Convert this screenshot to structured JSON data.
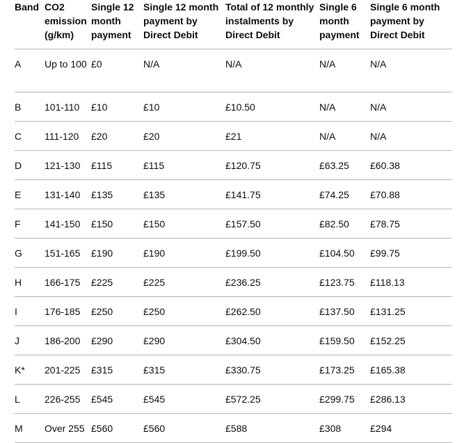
{
  "table": {
    "headers": [
      "Band",
      "CO2 emission (g/km)",
      "Single 12 month payment",
      "Single 12 month payment by Direct Debit",
      "Total of 12 monthly instalments by Direct Debit",
      "Single 6 month payment",
      "Single 6 month payment by Direct Debit"
    ],
    "rows": [
      [
        "A",
        "Up to 100",
        "£0",
        "N/A",
        "N/A",
        "N/A",
        "N/A"
      ],
      [
        "B",
        "101-110",
        "£10",
        "£10",
        "£10.50",
        "N/A",
        "N/A"
      ],
      [
        "C",
        "111-120",
        "£20",
        "£20",
        "£21",
        "N/A",
        "N/A"
      ],
      [
        "D",
        "121-130",
        "£115",
        "£115",
        "£120.75",
        "£63.25",
        "£60.38"
      ],
      [
        "E",
        "131-140",
        "£135",
        "£135",
        "£141.75",
        "£74.25",
        "£70.88"
      ],
      [
        "F",
        "141-150",
        "£150",
        "£150",
        "£157.50",
        "£82.50",
        "£78.75"
      ],
      [
        "G",
        "151-165",
        "£190",
        "£190",
        "£199.50",
        "£104.50",
        "£99.75"
      ],
      [
        "H",
        "166-175",
        "£225",
        "£225",
        "£236.25",
        "£123.75",
        "£118.13"
      ],
      [
        "I",
        "176-185",
        "£250",
        "£250",
        "£262.50",
        "£137.50",
        "£131.25"
      ],
      [
        "J",
        "186-200",
        "£290",
        "£290",
        "£304.50",
        "£159.50",
        "£152.25"
      ],
      [
        "K*",
        "201-225",
        "£315",
        "£315",
        "£330.75",
        "£173.25",
        "£165.38"
      ],
      [
        "L",
        "226-255",
        "£545",
        "£545",
        "£572.25",
        "£299.75",
        "£286.13"
      ],
      [
        "M",
        "Over 255",
        "£560",
        "£560",
        "£588",
        "£308",
        "£294"
      ]
    ]
  }
}
